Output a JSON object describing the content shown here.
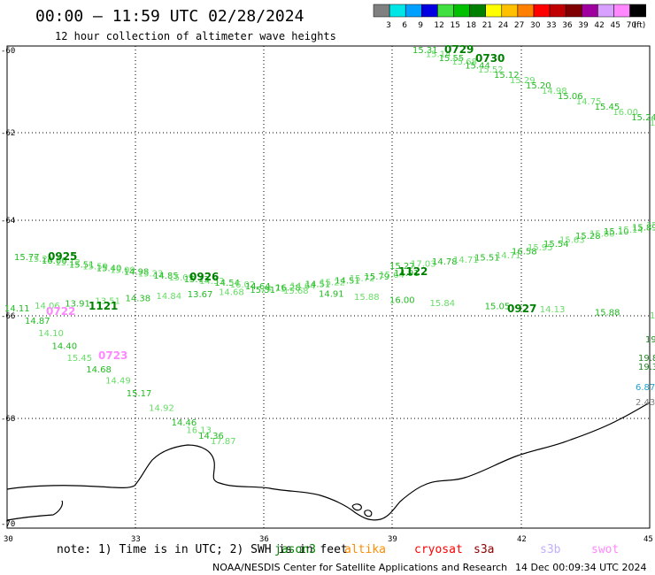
{
  "header": {
    "title": "00:00 – 11:59 UTC 02/28/2024",
    "subtitle": "12 hour collection of altimeter wave heights"
  },
  "legend": {
    "colors": [
      "#808080",
      "#00e5e5",
      "#00a0ff",
      "#0000e0",
      "#40e040",
      "#00c000",
      "#008000",
      "#ffff00",
      "#ffc000",
      "#ff8000",
      "#ff0000",
      "#c00000",
      "#800000",
      "#a000a0",
      "#d8a0ff",
      "#ff88ff",
      "#000000"
    ],
    "labels": [
      "3",
      "6",
      "9",
      "12",
      "15",
      "18",
      "21",
      "24",
      "27",
      "30",
      "33",
      "36",
      "39",
      "42",
      "45",
      "70"
    ],
    "unit": "(ft)"
  },
  "axes": {
    "x_ticks": [
      "30",
      "33",
      "36",
      "39",
      "42",
      "45"
    ],
    "y_ticks": [
      "-60",
      "-62",
      "-64",
      "-66",
      "-68",
      "-70"
    ]
  },
  "tracks": {
    "t1": {
      "label_a": "0729",
      "label_b": "0730",
      "values": [
        "15.31",
        "15.14",
        "15.55",
        "15.68",
        "15.44",
        "15.52",
        "15.12",
        "15.29",
        "15.20",
        "14.98",
        "15.06",
        "14.75",
        "15.45",
        "16.00",
        "15.24",
        "15.4"
      ]
    },
    "t2": {
      "label_a": "0925",
      "label_b": "0926",
      "values": [
        "15.77",
        "15.21",
        "16.06",
        "15.12",
        "15.51",
        "15.59",
        "15.40",
        "15.09",
        "14.98",
        "15.23",
        "14.85",
        "15.09",
        "15.13",
        "14.53",
        "14.54",
        "16.02",
        "14.64",
        "14.71",
        "16.28",
        "14.64",
        "14.51",
        "15.22",
        "14.51",
        "15.72",
        "15.79",
        "15.64",
        "14.91"
      ]
    },
    "t3": {
      "label": "1122",
      "values": [
        "15.27",
        "17.03",
        "14.78",
        "14.71",
        "15.51",
        "14.71",
        "16.58",
        "15.95",
        "15.54",
        "15.63",
        "15.28",
        "15.80",
        "15.10",
        "15.14",
        "15.89",
        "15.3"
      ]
    },
    "t4": {
      "label": "1121",
      "values": [
        "14.11",
        "14.06",
        "13.91",
        "13.51",
        "14.38",
        "14.84",
        "13.67",
        "14.68",
        "15.51",
        "15.68",
        "14.91",
        "15.88",
        "16.00",
        "15.84",
        "15.05",
        "14.13",
        "15.88",
        "14.73"
      ]
    },
    "t5": {
      "label_a": "0722",
      "label_b": "0723",
      "values": [
        "14.87",
        "14.10",
        "14.40",
        "15.45",
        "14.68",
        "14.49",
        "15.17",
        "14.92",
        "14.46",
        "16.13",
        "14.36",
        "17.87"
      ]
    },
    "t6": {
      "label": "0927"
    },
    "edge": [
      "19.",
      "19.8",
      "19.3",
      "6.87",
      "2.43"
    ]
  },
  "footer": {
    "note": "note: 1) Time is in UTC; 2) SWH is in feet",
    "satellites": [
      {
        "name": "jason3",
        "color": "#008000"
      },
      {
        "name": "altika",
        "color": "#ff8c00"
      },
      {
        "name": "cryosat",
        "color": "#ff0000"
      },
      {
        "name": "s3a",
        "color": "#8b0000"
      },
      {
        "name": "s3b",
        "color": "#c0b0ff"
      },
      {
        "name": "swot",
        "color": "#ff88ff"
      }
    ],
    "credit": "NOAA/NESDIS Center for Satellite Applications and Research",
    "timestamp": "14 Dec 00:09:34 UTC 2024"
  }
}
